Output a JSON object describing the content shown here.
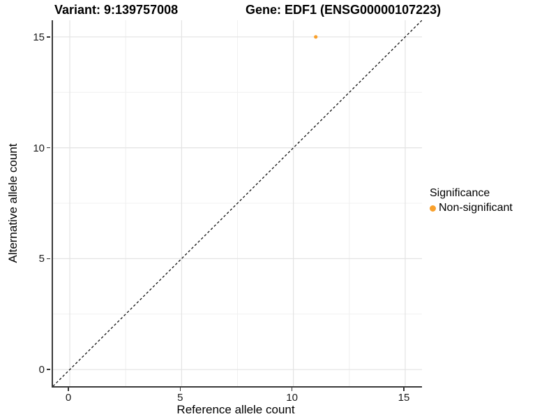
{
  "chart_data": {
    "type": "scatter",
    "titles": {
      "variant": "Variant: 9:139757008",
      "gene": "Gene: EDF1 (ENSG00000107223)"
    },
    "xlabel": "Reference allele count",
    "ylabel": "Alternative allele count",
    "xlim": [
      -0.75,
      15.75
    ],
    "ylim": [
      -0.75,
      15.75
    ],
    "x_ticks": [
      0,
      5,
      10,
      15
    ],
    "y_ticks": [
      0,
      5,
      10,
      15
    ],
    "x_minor_ticks": [
      2.5,
      7.5,
      12.5
    ],
    "y_minor_ticks": [
      2.5,
      7.5,
      12.5
    ],
    "grid": true,
    "series": [
      {
        "name": "Non-significant",
        "color": "#F9A02B",
        "points": [
          {
            "x": 11,
            "y": 15
          }
        ]
      }
    ],
    "abline": {
      "slope": 1,
      "intercept": 0,
      "style": "dashed",
      "color": "#111111"
    },
    "legend": {
      "title": "Significance",
      "position": "right",
      "entries": [
        {
          "label": "Non-significant",
          "color": "#F9A02B"
        }
      ]
    },
    "colors": {
      "major_grid": "#e3e3e3",
      "minor_grid": "#f0f0f0",
      "axis_line": "#3a3a3a",
      "tick": "#333333"
    }
  }
}
